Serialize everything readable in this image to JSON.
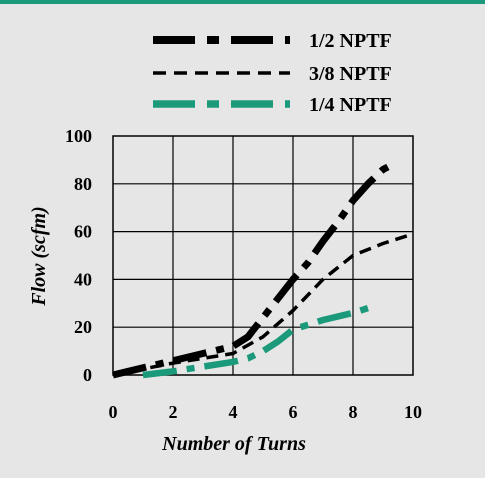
{
  "chart_data": {
    "type": "line",
    "xlabel": "Number of Turns",
    "ylabel": "Flow (scfm)",
    "xlim": [
      0,
      10
    ],
    "ylim": [
      0,
      100
    ],
    "x_ticks": [
      "0",
      "2",
      "4",
      "6",
      "8",
      "10"
    ],
    "y_ticks": [
      "0",
      "20",
      "40",
      "60",
      "80",
      "100"
    ],
    "grid": true,
    "legend_position": "top-right",
    "series": [
      {
        "name": "1/2 NPTF",
        "color": "#000000",
        "style": "dash-dot-thick",
        "x": [
          0,
          1,
          2,
          3,
          4,
          4.5,
          5,
          5.5,
          6,
          6.5,
          7,
          7.5,
          8,
          8.5,
          9,
          9.3
        ],
        "y": [
          0,
          3,
          6,
          9,
          12,
          16,
          24,
          32,
          40,
          47,
          56,
          64,
          73,
          80,
          86,
          88
        ]
      },
      {
        "name": "3/8 NPTF",
        "color": "#000000",
        "style": "dashed",
        "x": [
          0,
          1,
          2,
          3,
          4,
          5,
          6,
          7,
          8,
          9,
          10
        ],
        "y": [
          0,
          2.5,
          5,
          7,
          9,
          16,
          27,
          40,
          50,
          55,
          59
        ]
      },
      {
        "name": "1/4 NPTF",
        "color": "#1a9a7a",
        "style": "dash-dot-thick",
        "x": [
          1,
          2,
          3,
          4,
          4.5,
          5,
          5.5,
          6,
          7,
          8,
          8.5
        ],
        "y": [
          0,
          1.5,
          3.5,
          5.5,
          7,
          10,
          14,
          19,
          23,
          26,
          28
        ]
      }
    ]
  }
}
